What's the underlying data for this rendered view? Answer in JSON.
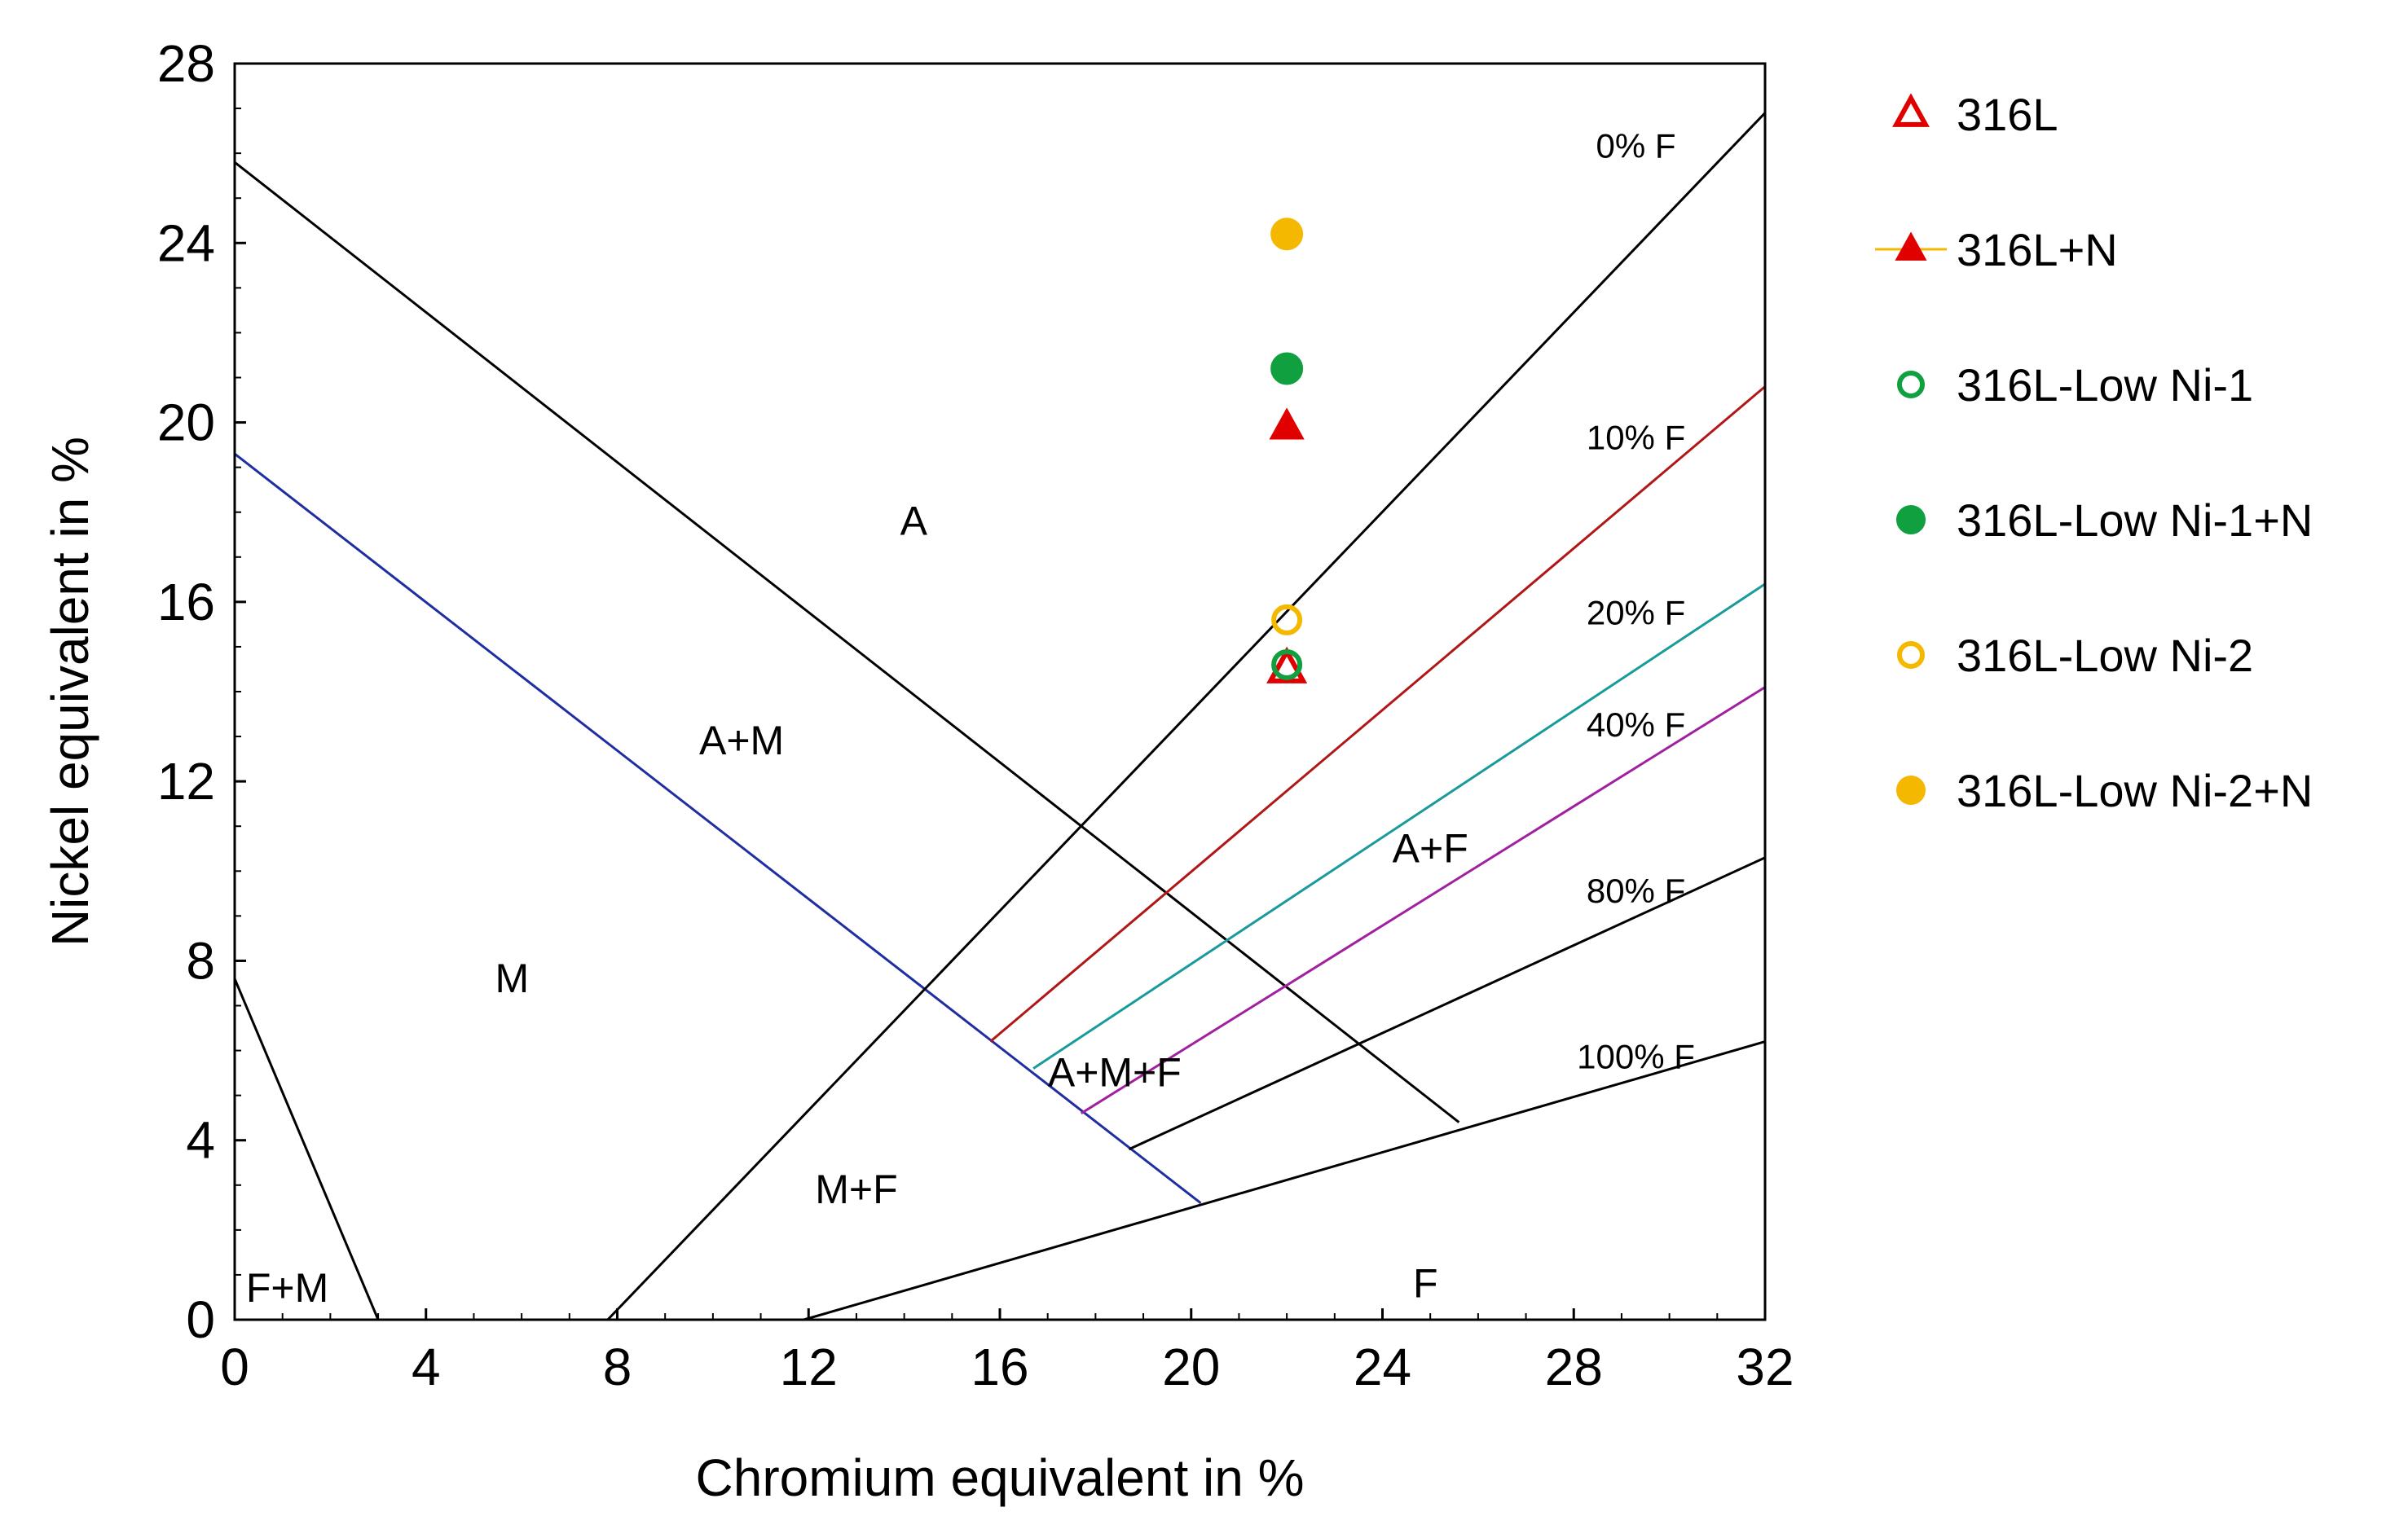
{
  "chart_data": {
    "type": "scatter",
    "title": "",
    "xlabel": "Chromium equivalent in %",
    "ylabel": "Nickel equivalent  in %",
    "xlim": [
      0,
      32
    ],
    "ylim": [
      0,
      28
    ],
    "x_ticks": [
      0,
      4,
      8,
      12,
      16,
      20,
      24,
      28,
      32
    ],
    "y_ticks": [
      0,
      4,
      8,
      12,
      16,
      20,
      24,
      28
    ],
    "boundary_lines": [
      {
        "name": "A/A+M boundary",
        "color": "#000000",
        "points": [
          [
            0,
            25.8
          ],
          [
            25.6,
            4.4
          ]
        ]
      },
      {
        "name": "A+M/M boundary",
        "color": "#1f2ea0",
        "points": [
          [
            0,
            19.3
          ],
          [
            20.2,
            2.6
          ]
        ]
      },
      {
        "name": "F+M boundary",
        "color": "#000000",
        "points": [
          [
            0,
            7.6
          ],
          [
            3.0,
            0
          ]
        ]
      },
      {
        "name": "0% F",
        "color": "#000000",
        "points": [
          [
            7.8,
            0
          ],
          [
            32,
            26.9
          ]
        ]
      },
      {
        "name": "10% F",
        "color": "#b01818",
        "points": [
          [
            15.8,
            6.2
          ],
          [
            32,
            20.8
          ]
        ]
      },
      {
        "name": "20% F",
        "color": "#1a9a9a",
        "points": [
          [
            16.7,
            5.6
          ],
          [
            32,
            16.4
          ]
        ]
      },
      {
        "name": "40% F",
        "color": "#a020a0",
        "points": [
          [
            17.7,
            4.6
          ],
          [
            32,
            14.1
          ]
        ]
      },
      {
        "name": "80% F",
        "color": "#000000",
        "points": [
          [
            18.7,
            3.8
          ],
          [
            32,
            10.3
          ]
        ]
      },
      {
        "name": "100% F",
        "color": "#000000",
        "points": [
          [
            11.9,
            0
          ],
          [
            32,
            6.2
          ]
        ]
      }
    ],
    "line_labels": [
      {
        "text": "0% F",
        "x": 29.3,
        "y": 25.9
      },
      {
        "text": "10% F",
        "x": 29.3,
        "y": 19.4
      },
      {
        "text": "20% F",
        "x": 29.3,
        "y": 15.5
      },
      {
        "text": "40% F",
        "x": 29.3,
        "y": 13.0
      },
      {
        "text": "80% F",
        "x": 29.3,
        "y": 9.3
      },
      {
        "text": "100% F",
        "x": 29.3,
        "y": 5.6
      }
    ],
    "region_labels": [
      {
        "text": "A",
        "x": 14.2,
        "y": 17.5
      },
      {
        "text": "A+M",
        "x": 10.6,
        "y": 12.6
      },
      {
        "text": "M",
        "x": 5.8,
        "y": 7.3
      },
      {
        "text": "A+F",
        "x": 25.0,
        "y": 10.2
      },
      {
        "text": "A+M+F",
        "x": 18.4,
        "y": 5.2
      },
      {
        "text": "M+F",
        "x": 13.0,
        "y": 2.6
      },
      {
        "text": "F",
        "x": 24.9,
        "y": 0.5
      },
      {
        "text": "F+M",
        "x": 1.1,
        "y": 0.4
      }
    ],
    "series": [
      {
        "name": "316L",
        "marker": "triangle-open",
        "color": "#e00000",
        "points": [
          [
            22.0,
            14.5
          ]
        ]
      },
      {
        "name": "316L+N",
        "marker": "triangle-filled",
        "color": "#e00000",
        "points": [
          [
            22.0,
            19.9
          ]
        ]
      },
      {
        "name": "316L-Low Ni-1",
        "marker": "circle-open",
        "color": "#10a040",
        "points": [
          [
            22.0,
            14.6
          ]
        ]
      },
      {
        "name": "316L-Low Ni-1+N",
        "marker": "circle-filled",
        "color": "#10a040",
        "points": [
          [
            22.0,
            21.2
          ]
        ]
      },
      {
        "name": "316L-Low Ni-2",
        "marker": "circle-open",
        "color": "#f5b800",
        "points": [
          [
            22.0,
            15.6
          ]
        ]
      },
      {
        "name": "316L-Low Ni-2+N",
        "marker": "circle-filled",
        "color": "#f5b800",
        "points": [
          [
            22.0,
            24.2
          ]
        ]
      }
    ],
    "legend_position": "right",
    "grid": false
  }
}
